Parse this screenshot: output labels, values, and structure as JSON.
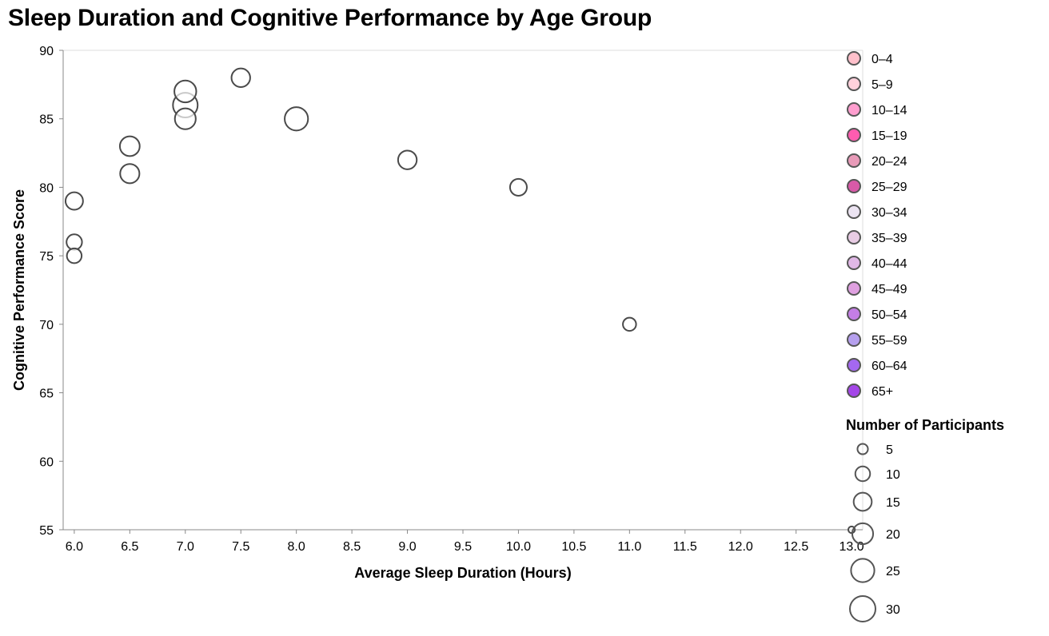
{
  "chart_data": {
    "type": "scatter",
    "title": "Sleep Duration and Cognitive Performance by Age Group",
    "xlabel": "Average Sleep Duration (Hours)",
    "ylabel": "Cognitive Performance Score",
    "xlim": [
      5.9,
      13.1
    ],
    "ylim": [
      55,
      90
    ],
    "x_ticks": [
      "6.0",
      "6.5",
      "7.0",
      "7.5",
      "8.0",
      "8.5",
      "9.0",
      "9.5",
      "10.0",
      "10.5",
      "11.0",
      "11.5",
      "12.0",
      "12.5",
      "13.0"
    ],
    "y_ticks": [
      "55",
      "60",
      "65",
      "70",
      "75",
      "80",
      "85",
      "90"
    ],
    "grid": false,
    "marker_fill": "#ffffff",
    "marker_stroke": "#4a4a4a",
    "points": [
      {
        "x": 13.0,
        "y": 55,
        "participants": 2
      },
      {
        "x": 11.0,
        "y": 70,
        "participants": 8
      },
      {
        "x": 10.0,
        "y": 80,
        "participants": 13
      },
      {
        "x": 9.0,
        "y": 82,
        "participants": 16
      },
      {
        "x": 8.0,
        "y": 85,
        "participants": 25
      },
      {
        "x": 7.5,
        "y": 88,
        "participants": 16
      },
      {
        "x": 7.0,
        "y": 86,
        "participants": 28
      },
      {
        "x": 7.0,
        "y": 87,
        "participants": 22
      },
      {
        "x": 7.0,
        "y": 85,
        "participants": 20
      },
      {
        "x": 6.5,
        "y": 83,
        "participants": 18
      },
      {
        "x": 6.5,
        "y": 81,
        "participants": 17
      },
      {
        "x": 6.0,
        "y": 79,
        "participants": 14
      },
      {
        "x": 6.0,
        "y": 76,
        "participants": 11
      },
      {
        "x": 6.0,
        "y": 75,
        "participants": 10
      }
    ],
    "legend_color": {
      "placement": "right",
      "entries": [
        {
          "label": "0–4",
          "color": "#ffc0cb"
        },
        {
          "label": "5–9",
          "color": "#ffd1dc"
        },
        {
          "label": "10–14",
          "color": "#ff9ecf"
        },
        {
          "label": "15–19",
          "color": "#ff5cb0"
        },
        {
          "label": "20–24",
          "color": "#e89ab8"
        },
        {
          "label": "25–29",
          "color": "#d85aa8"
        },
        {
          "label": "30–34",
          "color": "#ece4f2"
        },
        {
          "label": "35–39",
          "color": "#e8cce4"
        },
        {
          "label": "40–44",
          "color": "#e0b8e6"
        },
        {
          "label": "45–49",
          "color": "#dfa0e0"
        },
        {
          "label": "50–54",
          "color": "#c47ee6"
        },
        {
          "label": "55–59",
          "color": "#b6a0ee"
        },
        {
          "label": "60–64",
          "color": "#a468f0"
        },
        {
          "label": "65+",
          "color": "#a446e8"
        }
      ]
    },
    "legend_size": {
      "title": "Number of Participants",
      "entries": [
        {
          "label": "5",
          "value": 5
        },
        {
          "label": "10",
          "value": 10
        },
        {
          "label": "15",
          "value": 15
        },
        {
          "label": "20",
          "value": 20
        },
        {
          "label": "25",
          "value": 25
        },
        {
          "label": "30",
          "value": 30
        }
      ]
    }
  }
}
